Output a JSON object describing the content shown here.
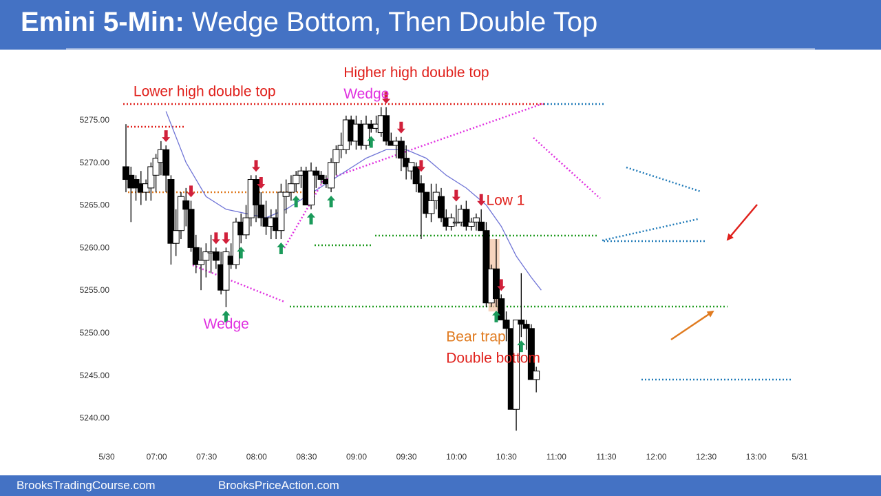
{
  "header": {
    "title_bold": "Emini 5-Min:",
    "title_rest": "Wedge Bottom, Then Double Top"
  },
  "footer": {
    "left_link": "BrooksTradingCourse.com",
    "right_link": "BrooksPriceAction.com"
  },
  "colors": {
    "header_bg": "#4472c4",
    "bull_fill": "#ffffff",
    "bear_fill": "#000000",
    "ema": "#6f74d6",
    "red_annotation": "#e0201b",
    "magenta_annotation": "#e030e0",
    "orange_annotation": "#e07b20",
    "green_line": "#1f9a1f",
    "blue_line": "#1f7ab8",
    "buy_arrow": "#1a9a5a",
    "sell_arrow": "#d1203a"
  },
  "chart_data": {
    "type": "candlestick",
    "ylim": [
      5237.5,
      5280.5
    ],
    "y_ticks": [
      "5240.00",
      "5245.00",
      "5250.00",
      "5255.00",
      "5260.00",
      "5265.00",
      "5270.00",
      "5275.00"
    ],
    "x_ticks": [
      "5/30",
      "07:00",
      "07:30",
      "08:00",
      "08:30",
      "09:00",
      "09:30",
      "10:00",
      "10:30",
      "11:00",
      "11:30",
      "12:00",
      "12:30",
      "13:00",
      "5/31"
    ],
    "bars": [
      [
        5269.5,
        5274.5,
        5266.5,
        5268.0
      ],
      [
        5268.5,
        5269.5,
        5263.0,
        5267.0
      ],
      [
        5268.0,
        5268.5,
        5265.5,
        5267.0
      ],
      [
        5267.5,
        5269.0,
        5265.0,
        5266.5
      ],
      [
        5266.5,
        5268.0,
        5265.5,
        5267.5
      ],
      [
        5267.0,
        5270.0,
        5265.5,
        5269.5
      ],
      [
        5268.5,
        5271.0,
        5266.5,
        5270.5
      ],
      [
        5270.0,
        5272.5,
        5268.5,
        5271.5
      ],
      [
        5271.5,
        5272.0,
        5266.5,
        5268.5
      ],
      [
        5268.0,
        5268.5,
        5258.0,
        5260.5
      ],
      [
        5260.5,
        5264.5,
        5259.0,
        5262.0
      ],
      [
        5262.0,
        5266.5,
        5261.0,
        5266.0
      ],
      [
        5265.5,
        5267.0,
        5262.5,
        5264.5
      ],
      [
        5264.5,
        5265.5,
        5259.5,
        5260.0
      ],
      [
        5260.0,
        5261.5,
        5257.0,
        5258.0
      ],
      [
        5258.0,
        5260.0,
        5255.0,
        5258.5
      ],
      [
        5258.5,
        5260.5,
        5256.5,
        5259.5
      ],
      [
        5259.5,
        5261.5,
        5257.0,
        5259.5
      ],
      [
        5259.5,
        5260.0,
        5257.5,
        5258.5
      ],
      [
        5258.0,
        5259.5,
        5254.5,
        5255.0
      ],
      [
        5255.0,
        5260.0,
        5253.0,
        5259.5
      ],
      [
        5259.0,
        5260.5,
        5257.5,
        5258.0
      ],
      [
        5258.0,
        5263.5,
        5257.5,
        5263.0
      ],
      [
        5263.0,
        5264.0,
        5260.5,
        5261.5
      ],
      [
        5261.5,
        5265.0,
        5261.0,
        5263.5
      ],
      [
        5263.5,
        5268.5,
        5262.5,
        5268.0
      ],
      [
        5268.0,
        5268.5,
        5263.0,
        5265.0
      ],
      [
        5265.0,
        5266.5,
        5262.5,
        5263.5
      ],
      [
        5263.5,
        5265.5,
        5261.5,
        5262.5
      ],
      [
        5262.5,
        5264.5,
        5261.0,
        5263.5
      ],
      [
        5263.5,
        5264.5,
        5261.0,
        5262.0
      ],
      [
        5262.0,
        5267.5,
        5261.0,
        5266.5
      ],
      [
        5266.0,
        5268.0,
        5264.0,
        5266.5
      ],
      [
        5266.5,
        5268.5,
        5265.5,
        5267.5
      ],
      [
        5267.5,
        5269.0,
        5266.5,
        5268.5
      ],
      [
        5268.5,
        5269.5,
        5267.0,
        5269.0
      ],
      [
        5269.0,
        5269.5,
        5265.0,
        5265.0
      ],
      [
        5265.0,
        5270.0,
        5264.5,
        5269.0
      ],
      [
        5269.0,
        5269.5,
        5267.0,
        5268.5
      ],
      [
        5268.5,
        5269.0,
        5267.5,
        5268.0
      ],
      [
        5268.0,
        5268.5,
        5267.0,
        5267.5
      ],
      [
        5267.0,
        5270.5,
        5266.5,
        5270.0
      ],
      [
        5270.0,
        5272.0,
        5268.5,
        5271.5
      ],
      [
        5271.5,
        5273.5,
        5270.5,
        5272.0
      ],
      [
        5271.5,
        5275.5,
        5271.0,
        5275.0
      ],
      [
        5275.0,
        5275.5,
        5272.0,
        5272.5
      ],
      [
        5272.5,
        5275.5,
        5271.5,
        5274.5
      ],
      [
        5274.5,
        5275.0,
        5271.5,
        5272.0
      ],
      [
        5272.0,
        5275.5,
        5271.5,
        5274.5
      ],
      [
        5274.5,
        5275.0,
        5273.5,
        5274.0
      ],
      [
        5274.0,
        5275.5,
        5273.5,
        5274.5
      ],
      [
        5273.5,
        5276.5,
        5273.0,
        5275.5
      ],
      [
        5275.5,
        5276.5,
        5272.0,
        5272.5
      ],
      [
        5272.5,
        5273.5,
        5272.0,
        5272.0
      ],
      [
        5272.0,
        5273.0,
        5270.5,
        5272.5
      ],
      [
        5272.5,
        5273.0,
        5269.0,
        5270.5
      ],
      [
        5270.5,
        5272.0,
        5268.0,
        5269.5
      ],
      [
        5269.0,
        5270.0,
        5268.0,
        5270.0
      ],
      [
        5269.5,
        5270.0,
        5266.5,
        5267.5
      ],
      [
        5267.5,
        5268.5,
        5261.0,
        5266.5
      ],
      [
        5266.5,
        5266.5,
        5263.5,
        5264.0
      ],
      [
        5264.0,
        5267.5,
        5263.0,
        5265.5
      ],
      [
        5265.5,
        5267.5,
        5264.5,
        5266.5
      ],
      [
        5266.0,
        5267.0,
        5263.0,
        5263.5
      ],
      [
        5263.5,
        5264.5,
        5262.0,
        5262.5
      ],
      [
        5262.5,
        5264.0,
        5262.0,
        5263.5
      ],
      [
        5263.0,
        5265.0,
        5262.5,
        5263.0
      ],
      [
        5263.0,
        5265.0,
        5262.5,
        5264.5
      ],
      [
        5264.5,
        5265.5,
        5262.0,
        5262.5
      ],
      [
        5262.5,
        5263.5,
        5262.0,
        5263.0
      ],
      [
        5263.0,
        5264.0,
        5262.0,
        5263.5
      ],
      [
        5263.0,
        5264.5,
        5262.0,
        5262.0
      ],
      [
        5262.0,
        5263.0,
        5253.0,
        5253.5
      ],
      [
        5253.5,
        5258.0,
        5253.0,
        5257.5
      ],
      [
        5257.5,
        5261.0,
        5253.0,
        5254.0
      ],
      [
        5254.0,
        5254.5,
        5251.5,
        5251.5
      ],
      [
        5251.5,
        5252.5,
        5249.0,
        5250.5
      ],
      [
        5250.5,
        5250.5,
        5241.0,
        5241.0
      ],
      [
        5241.0,
        5251.5,
        5238.5,
        5251.5
      ],
      [
        5251.5,
        5257.0,
        5249.5,
        5251.0
      ],
      [
        5251.0,
        5251.5,
        5248.0,
        5250.5
      ],
      [
        5250.5,
        5251.0,
        5244.5,
        5244.5
      ],
      [
        5244.5,
        5246.0,
        5243.0,
        5245.5
      ]
    ],
    "ema": [
      [
        8,
        5276.0
      ],
      [
        12,
        5270.0
      ],
      [
        16,
        5266.0
      ],
      [
        20,
        5264.5
      ],
      [
        24,
        5264.0
      ],
      [
        28,
        5263.5
      ],
      [
        32,
        5264.5
      ],
      [
        36,
        5266.0
      ],
      [
        40,
        5267.5
      ],
      [
        44,
        5269.0
      ],
      [
        48,
        5270.5
      ],
      [
        52,
        5271.5
      ],
      [
        56,
        5271.5
      ],
      [
        60,
        5270.5
      ],
      [
        64,
        5268.5
      ],
      [
        68,
        5267.0
      ],
      [
        72,
        5265.0
      ],
      [
        75,
        5262.5
      ],
      [
        78,
        5259.0
      ],
      [
        81,
        5256.5
      ],
      [
        83,
        5255.0
      ]
    ],
    "annotations": [
      {
        "text": "Lower high double top",
        "bar": 1.5,
        "price": 5277.8,
        "color": "red"
      },
      {
        "text": "Higher high double top",
        "bar": 43.5,
        "price": 5280.0,
        "color": "red"
      },
      {
        "text": "Wedge",
        "bar": 43.5,
        "price": 5277.5,
        "color": "magenta"
      },
      {
        "text": "Wedge",
        "bar": 15.5,
        "price": 5250.5,
        "color": "magenta"
      },
      {
        "text": "Low 1",
        "bar": 72.0,
        "price": 5265.0,
        "color": "red"
      },
      {
        "text": "Bear trap",
        "bar": 64.0,
        "price": 5249.0,
        "color": "orange"
      },
      {
        "text": "Double bottom",
        "bar": 64.0,
        "price": 5246.5,
        "color": "red"
      }
    ],
    "buy_signals": [
      20,
      23,
      31,
      34,
      37,
      41,
      49,
      74,
      79
    ],
    "sell_signals": [
      8,
      13,
      18,
      20,
      26,
      27,
      52,
      55,
      59,
      66,
      71,
      75
    ]
  }
}
